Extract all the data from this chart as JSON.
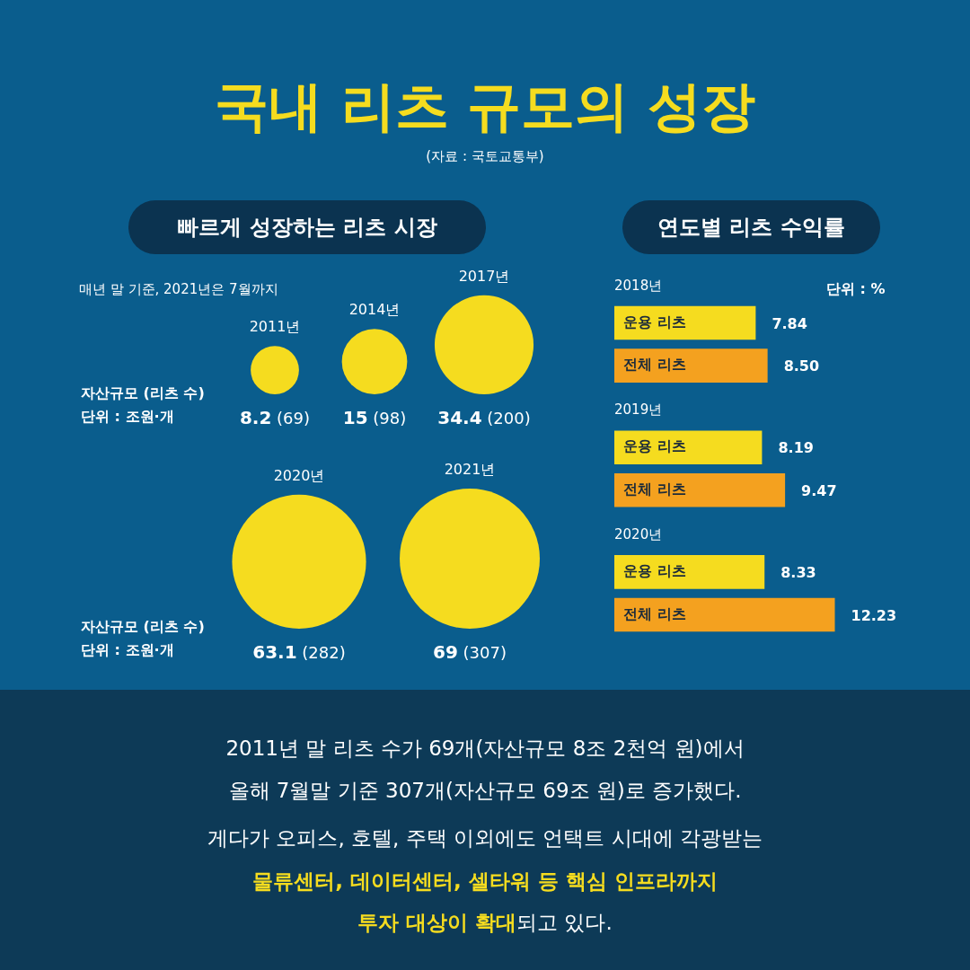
{
  "chart_data": [
    {
      "type": "other",
      "title": "국내 리츠 규모의 성장",
      "subtitle": "빠르게 성장하는 리츠 시장",
      "categories": [
        "2011년",
        "2014년",
        "2017년",
        "2020년",
        "2021년"
      ],
      "values": [
        8.2,
        15,
        34.4,
        63.1,
        69
      ],
      "value_labels": [
        "8.2 (69)",
        "15 (98)",
        "34.4 (200)",
        "63.1 (282)",
        "69 (307)"
      ],
      "color": "#f5dc1f",
      "annotations": [
        "(자료 : 국토교통부)",
        "매년 말 기준, 2021년은 7월까지",
        "자산규모 (리츠 수)",
        "단위 : 조원·개",
        "자산규모 (리츠 수)",
        "단위 : 조원·개",
        "2011년 말 리츠 수가 69개(자산규모 8조 2천억 원)에서",
        "올해 7월말 기준 307개(자산규모 69조 원)로 증가했다.",
        "게다가 오피스, 호텔, 주택 이외에도 언택트 시대에 각광받는",
        "물류센터, 데이터센터, 셀타워 등 핵심 인프라까지",
        "투자 대상이 확대",
        "되고 있다."
      ]
    },
    {
      "type": "bar",
      "title": "연도별 리츠 수익률",
      "orientation": "horizontal",
      "categories": [
        "2018년",
        "2019년",
        "2020년"
      ],
      "series": [
        {
          "name": "운용 리츠",
          "color": "#f5dc1f",
          "values": [
            7.84,
            8.19,
            8.33
          ],
          "value_labels": [
            "7.84",
            "8.19",
            "8.33"
          ]
        },
        {
          "name": "전체 리츠",
          "color": "#f4a11f",
          "values": [
            8.5,
            9.47,
            12.23
          ],
          "value_labels": [
            "8.50",
            "9.47",
            "12.23"
          ]
        }
      ],
      "annotations": [
        "단위 : %"
      ]
    }
  ]
}
